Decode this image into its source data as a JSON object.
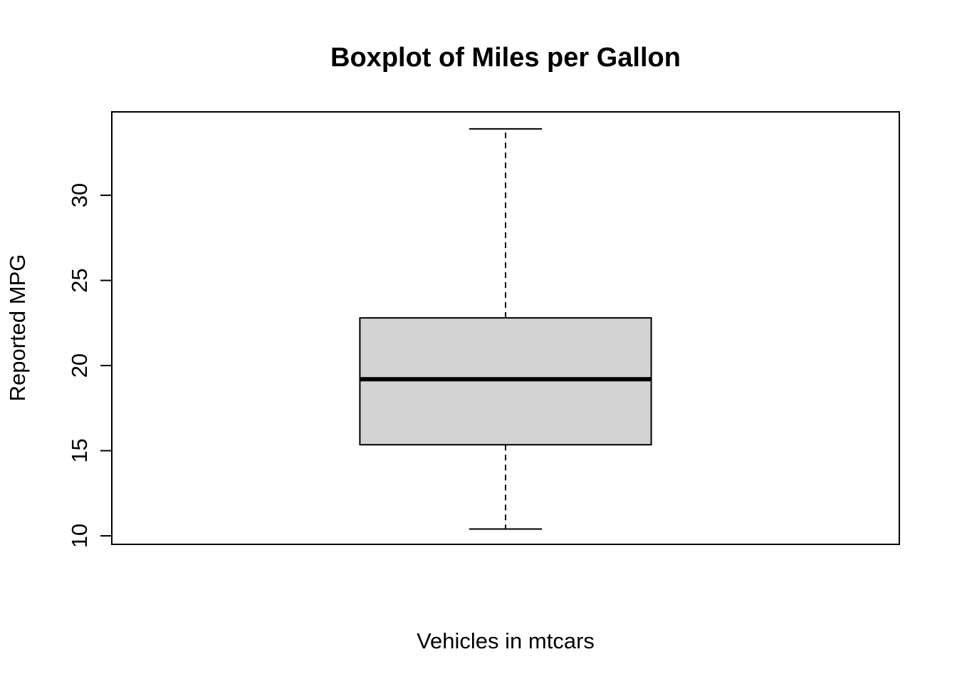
{
  "chart_data": {
    "type": "boxplot",
    "title": "Boxplot of Miles per Gallon",
    "xlabel": "Vehicles in mtcars",
    "ylabel": "Reported MPG",
    "ylim": [
      9.5,
      34.9
    ],
    "yticks": [
      10,
      15,
      20,
      25,
      30
    ],
    "grid": false,
    "legend": "none",
    "box": {
      "min": 10.4,
      "q1": 15.35,
      "median": 19.2,
      "q3": 22.8,
      "max": 33.9
    },
    "colors": {
      "box_fill": "#d3d3d3",
      "stroke": "#000000"
    }
  }
}
